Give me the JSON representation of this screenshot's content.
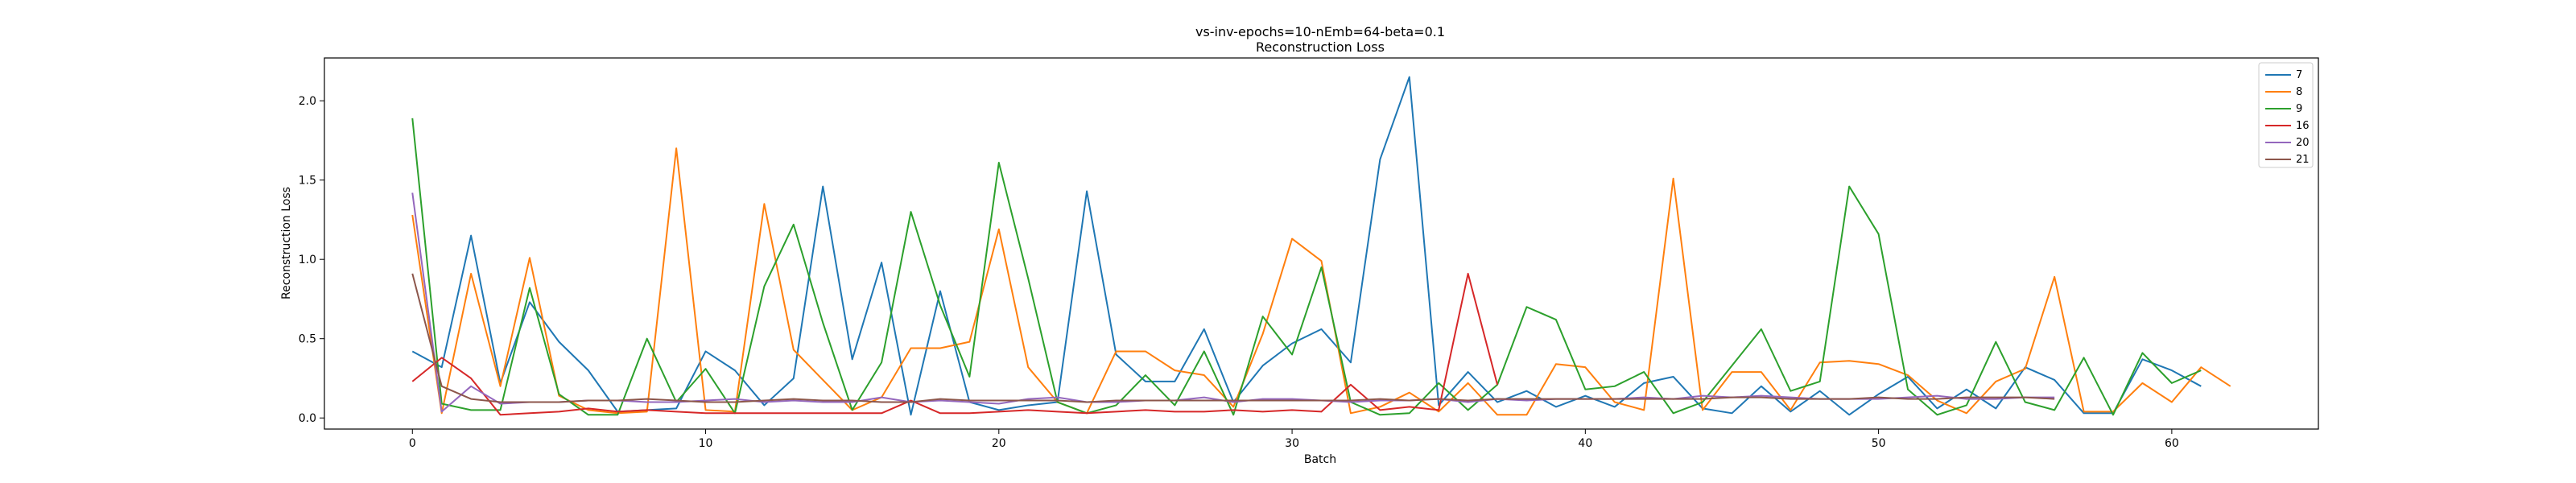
{
  "chart_data": {
    "type": "line",
    "title": "vs-inv-epochs=10-nEmb=64-beta=0.1",
    "subtitle": "Reconstruction Loss",
    "xlabel": "Batch",
    "ylabel": "Reconstruction Loss",
    "xlim": [
      -3,
      65
    ],
    "ylim": [
      -0.07,
      2.27
    ],
    "xticks": [
      0,
      10,
      20,
      30,
      40,
      50,
      60
    ],
    "yticks": [
      0.0,
      0.5,
      1.0,
      1.5,
      2.0
    ],
    "xtick_labels": [
      "0",
      "10",
      "20",
      "30",
      "40",
      "50",
      "60"
    ],
    "ytick_labels": [
      "0.0",
      "0.5",
      "1.0",
      "1.5",
      "2.0"
    ],
    "grid": false,
    "legend_position": "top-right",
    "series": [
      {
        "name": "7",
        "color": "#1f77b4",
        "values": [
          0.42,
          0.32,
          1.15,
          0.22,
          0.73,
          0.48,
          0.3,
          0.04,
          0.05,
          0.06,
          0.42,
          0.3,
          0.08,
          0.25,
          1.46,
          0.37,
          0.98,
          0.02,
          0.8,
          0.1,
          0.05,
          0.08,
          0.1,
          1.43,
          0.4,
          0.23,
          0.23,
          0.56,
          0.1,
          0.33,
          0.47,
          0.56,
          0.35,
          1.63,
          2.15,
          0.08,
          0.29,
          0.1,
          0.17,
          0.07,
          0.14,
          0.07,
          0.22,
          0.26,
          0.06,
          0.03,
          0.2,
          0.04,
          0.17,
          0.02,
          0.15,
          0.26,
          0.06,
          0.18,
          0.06,
          0.32,
          0.24,
          0.03,
          0.03,
          0.37,
          0.3,
          0.2
        ]
      },
      {
        "name": "8",
        "color": "#ff7f0e",
        "values": [
          1.28,
          0.03,
          0.91,
          0.2,
          1.01,
          0.14,
          0.05,
          0.03,
          0.04,
          1.7,
          0.05,
          0.04,
          1.35,
          0.43,
          0.24,
          0.05,
          0.13,
          0.44,
          0.44,
          0.48,
          1.19,
          0.32,
          0.1,
          0.03,
          0.42,
          0.42,
          0.3,
          0.27,
          0.07,
          0.53,
          1.13,
          0.99,
          0.03,
          0.07,
          0.16,
          0.04,
          0.22,
          0.02,
          0.02,
          0.34,
          0.32,
          0.1,
          0.05,
          1.51,
          0.05,
          0.29,
          0.29,
          0.05,
          0.35,
          0.36,
          0.34,
          0.27,
          0.11,
          0.03,
          0.23,
          0.31,
          0.89,
          0.04,
          0.04,
          0.22,
          0.1,
          0.32,
          0.2
        ]
      },
      {
        "name": "9",
        "color": "#2ca02c",
        "values": [
          1.89,
          0.09,
          0.05,
          0.05,
          0.82,
          0.15,
          0.02,
          0.02,
          0.5,
          0.1,
          0.31,
          0.03,
          0.83,
          1.22,
          0.6,
          0.05,
          0.35,
          1.3,
          0.71,
          0.26,
          1.61,
          0.88,
          0.1,
          0.03,
          0.08,
          0.27,
          0.08,
          0.42,
          0.02,
          0.64,
          0.4,
          0.95,
          0.1,
          0.02,
          0.03,
          0.22,
          0.05,
          0.21,
          0.7,
          0.62,
          0.18,
          0.2,
          0.29,
          0.03,
          0.1,
          0.33,
          0.56,
          0.17,
          0.23,
          1.46,
          1.16,
          0.18,
          0.02,
          0.08,
          0.48,
          0.1,
          0.05,
          0.38,
          0.02,
          0.41,
          0.22,
          0.3
        ]
      },
      {
        "name": "16",
        "color": "#d62728",
        "values": [
          0.23,
          0.38,
          0.25,
          0.02,
          0.03,
          0.04,
          0.06,
          0.04,
          0.05,
          0.04,
          0.03,
          0.03,
          0.03,
          0.03,
          0.03,
          0.03,
          0.03,
          0.11,
          0.03,
          0.03,
          0.04,
          0.05,
          0.04,
          0.03,
          0.04,
          0.05,
          0.04,
          0.04,
          0.05,
          0.04,
          0.05,
          0.04,
          0.21,
          0.05,
          0.07,
          0.05,
          0.91,
          0.21
        ]
      },
      {
        "name": "20",
        "color": "#9467bd",
        "values": [
          1.42,
          0.04,
          0.2,
          0.09,
          0.1,
          0.1,
          0.11,
          0.11,
          0.1,
          0.1,
          0.11,
          0.12,
          0.1,
          0.11,
          0.1,
          0.1,
          0.13,
          0.1,
          0.11,
          0.1,
          0.09,
          0.12,
          0.13,
          0.1,
          0.1,
          0.11,
          0.11,
          0.13,
          0.1,
          0.12,
          0.12,
          0.11,
          0.1,
          0.11,
          0.11,
          0.12,
          0.1,
          0.12,
          0.11,
          0.12,
          0.12,
          0.12,
          0.13,
          0.12,
          0.14,
          0.13,
          0.14,
          0.13,
          0.12,
          0.12,
          0.12,
          0.13,
          0.14,
          0.12,
          0.12,
          0.13,
          0.13
        ]
      },
      {
        "name": "21",
        "color": "#8c564b",
        "values": [
          0.91,
          0.2,
          0.12,
          0.1,
          0.1,
          0.1,
          0.11,
          0.11,
          0.12,
          0.11,
          0.1,
          0.1,
          0.11,
          0.12,
          0.11,
          0.11,
          0.1,
          0.1,
          0.12,
          0.11,
          0.11,
          0.11,
          0.11,
          0.1,
          0.11,
          0.11,
          0.11,
          0.11,
          0.11,
          0.11,
          0.11,
          0.11,
          0.11,
          0.12,
          0.11,
          0.12,
          0.11,
          0.12,
          0.12,
          0.12,
          0.12,
          0.12,
          0.12,
          0.12,
          0.12,
          0.13,
          0.13,
          0.12,
          0.12,
          0.12,
          0.13,
          0.12,
          0.12,
          0.13,
          0.13,
          0.13,
          0.12
        ]
      }
    ]
  }
}
